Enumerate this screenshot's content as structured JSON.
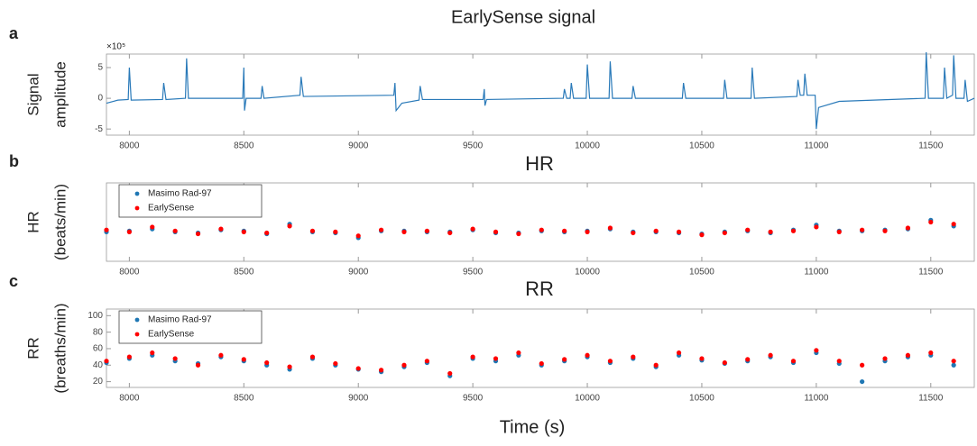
{
  "chart_data": [
    {
      "type": "line",
      "panel_label": "a",
      "title": "EarlySense signal",
      "ylabel_lines": [
        "Signal",
        "amplitude"
      ],
      "y_exponent_label": "×10⁵",
      "color": "#2a7ab9",
      "x": [
        7900,
        7950,
        7995,
        8000,
        8008,
        8145,
        8150,
        8160,
        8245,
        8250,
        8258,
        8495,
        8500,
        8503,
        8510,
        8575,
        8580,
        8588,
        8745,
        8750,
        8760,
        9155,
        9160,
        9165,
        9190,
        9265,
        9270,
        9280,
        9545,
        9550,
        9553,
        9560,
        9895,
        9900,
        9910,
        9925,
        9930,
        9940,
        9995,
        10000,
        10010,
        10095,
        10100,
        10110,
        10195,
        10200,
        10210,
        10415,
        10420,
        10430,
        10595,
        10600,
        10610,
        10715,
        10720,
        10730,
        10915,
        10920,
        10930,
        10945,
        10950,
        10960,
        10995,
        11000,
        11010,
        11100,
        11475,
        11480,
        11490,
        11555,
        11560,
        11570,
        11595,
        11600,
        11610,
        11645,
        11650,
        11660,
        11690
      ],
      "values": [
        -0.8,
        -0.3,
        -0.2,
        5,
        -0.3,
        -0.2,
        2.5,
        -0.2,
        0,
        6.5,
        0,
        0,
        5,
        -2,
        0,
        0,
        2,
        0,
        0.5,
        3.5,
        0.3,
        0.5,
        2.5,
        -2,
        -0.8,
        -0.3,
        2,
        -0.2,
        -0.2,
        1.5,
        -1.2,
        -0.2,
        0,
        1.5,
        0,
        0,
        2.5,
        0,
        0,
        5.5,
        0,
        0,
        6,
        0,
        0,
        2,
        0,
        0,
        2.5,
        0,
        0,
        3,
        0,
        0,
        5,
        0,
        0.3,
        3,
        0.5,
        0.5,
        4,
        0.5,
        0.5,
        -5,
        -1.5,
        -0.5,
        0,
        7.5,
        0,
        0,
        5,
        0,
        0.5,
        7,
        0,
        0,
        3,
        -0.5,
        0
      ],
      "xlim": [
        7900,
        11690
      ],
      "ylim": [
        -6,
        7.2
      ],
      "xticks": [
        8000,
        8500,
        9000,
        9500,
        10000,
        10500,
        11000,
        11500
      ],
      "yticks": [
        -5,
        0,
        5
      ]
    },
    {
      "type": "scatter",
      "panel_label": "b",
      "title": "HR",
      "ylabel_lines": [
        "HR",
        "(beats/min)"
      ],
      "legend": "upper left",
      "x": [
        7900,
        8000,
        8100,
        8200,
        8300,
        8400,
        8500,
        8600,
        8700,
        8800,
        8900,
        9000,
        9100,
        9200,
        9300,
        9400,
        9500,
        9600,
        9700,
        9800,
        9900,
        10000,
        10100,
        10200,
        10300,
        10400,
        10500,
        10600,
        10700,
        10800,
        10900,
        11000,
        11100,
        11200,
        11300,
        11400,
        11500,
        11600
      ],
      "series": [
        {
          "name": "Masimo Rad-97",
          "color": "#1f77b4",
          "values": [
            70,
            71,
            73,
            70,
            69,
            72,
            71,
            68,
            78,
            70,
            69,
            64,
            71,
            71,
            70,
            70,
            72,
            69,
            69,
            71,
            70,
            71,
            73,
            70,
            70,
            69,
            68,
            70,
            71,
            69,
            72,
            77,
            71,
            71,
            72,
            73,
            82,
            76
          ]
        },
        {
          "name": "EarlySense",
          "color": "#ff0000",
          "values": [
            72,
            70,
            75,
            71,
            68,
            73,
            70,
            69,
            76,
            71,
            70,
            66,
            72,
            70,
            71,
            69,
            73,
            70,
            68,
            72,
            71,
            70,
            74,
            69,
            71,
            70,
            67,
            69,
            72,
            70,
            71,
            75,
            70,
            72,
            71,
            74,
            80,
            78
          ]
        }
      ],
      "xlim": [
        7900,
        11690
      ],
      "ylim": [
        40,
        120
      ],
      "xticks": [
        8000,
        8500,
        9000,
        9500,
        10000,
        10500,
        11000,
        11500
      ]
    },
    {
      "type": "scatter",
      "panel_label": "c",
      "title": "RR",
      "ylabel_lines": [
        "RR",
        "(breaths/min)"
      ],
      "legend": "upper left",
      "xlabel": "Time (s)",
      "x": [
        7900,
        8000,
        8100,
        8200,
        8300,
        8400,
        8500,
        8600,
        8700,
        8800,
        8900,
        9000,
        9100,
        9200,
        9300,
        9400,
        9500,
        9600,
        9700,
        9800,
        9900,
        10000,
        10100,
        10200,
        10300,
        10400,
        10500,
        10600,
        10700,
        10800,
        10900,
        11000,
        11100,
        11200,
        11300,
        11400,
        11500,
        11600
      ],
      "series": [
        {
          "name": "Masimo Rad-97",
          "color": "#1f77b4",
          "values": [
            43,
            48,
            52,
            45,
            42,
            50,
            45,
            40,
            35,
            48,
            40,
            35,
            32,
            38,
            43,
            27,
            48,
            45,
            52,
            40,
            45,
            50,
            43,
            48,
            38,
            52,
            46,
            42,
            45,
            50,
            43,
            55,
            42,
            20,
            45,
            50,
            52,
            40
          ]
        },
        {
          "name": "EarlySense",
          "color": "#ff0000",
          "values": [
            45,
            50,
            55,
            48,
            40,
            52,
            47,
            43,
            38,
            50,
            42,
            36,
            34,
            40,
            45,
            30,
            50,
            48,
            55,
            42,
            47,
            52,
            45,
            50,
            40,
            55,
            48,
            43,
            47,
            52,
            45,
            58,
            45,
            40,
            48,
            52,
            55,
            45
          ]
        }
      ],
      "xlim": [
        7900,
        11690
      ],
      "ylim": [
        13,
        108
      ],
      "xticks": [
        8000,
        8500,
        9000,
        9500,
        10000,
        10500,
        11000,
        11500
      ],
      "yticks": [
        20,
        40,
        60,
        80,
        100
      ]
    }
  ]
}
